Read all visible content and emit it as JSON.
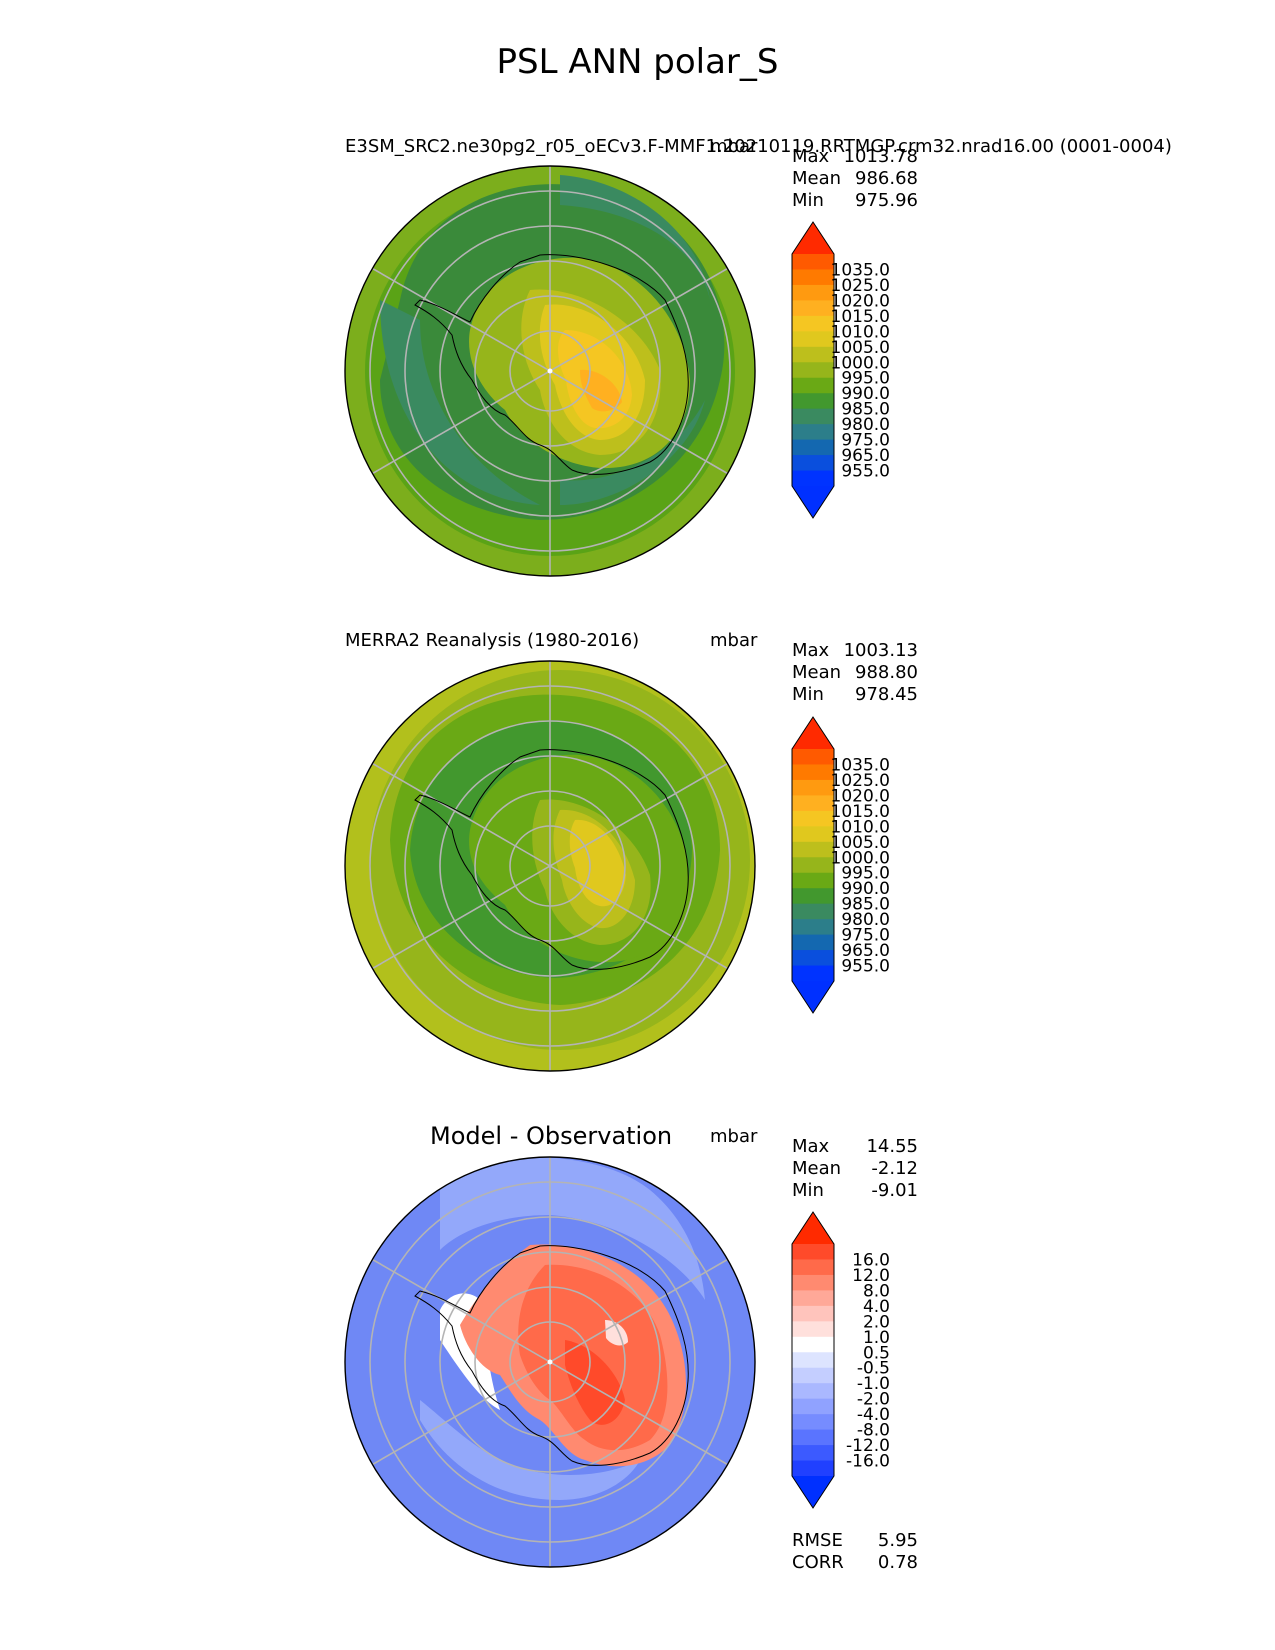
{
  "figure": {
    "title": "PSL ANN polar_S"
  },
  "chart_data": [
    {
      "type": "heatmap",
      "projection": "south-polar-stereographic",
      "panel": "test",
      "title_left": "E3SM_SRC2.ne30pg2_r05_oECv3.F-MMF1.20210119.RRTMGP.crm32.nrad16.00 (0001-0004)",
      "title_right": "mbar",
      "stats": [
        {
          "label": "Max",
          "value": "1013.78"
        },
        {
          "label": "Mean",
          "value": "986.68"
        },
        {
          "label": "Min",
          "value": "975.96"
        }
      ],
      "colorbar": {
        "extend": "both",
        "colors": [
          "#ff2a00",
          "#ff5a00",
          "#ff7a00",
          "#ff9a10",
          "#ffb020",
          "#f5c622",
          "#e0c81e",
          "#bdbf1c",
          "#96b51b",
          "#6aa915",
          "#42982e",
          "#3a8a60",
          "#2c7e8a",
          "#1468b0",
          "#0a4fdd",
          "#0033ff",
          "#0030ff"
        ],
        "ticks": [
          "1035.0",
          "1025.0",
          "1020.0",
          "1015.0",
          "1010.0",
          "1005.0",
          "1000.0",
          "995.0",
          "990.0",
          "985.0",
          "980.0",
          "975.0",
          "965.0",
          "955.0"
        ]
      }
    },
    {
      "type": "heatmap",
      "projection": "south-polar-stereographic",
      "panel": "reference",
      "title_left": "MERRA2 Reanalysis (1980-2016)",
      "title_right": "mbar",
      "stats": [
        {
          "label": "Max",
          "value": "1003.13"
        },
        {
          "label": "Mean",
          "value": "988.80"
        },
        {
          "label": "Min",
          "value": "978.45"
        }
      ],
      "colorbar": {
        "extend": "both",
        "colors": [
          "#ff2a00",
          "#ff5a00",
          "#ff7a00",
          "#ff9a10",
          "#ffb020",
          "#f5c622",
          "#e0c81e",
          "#bdbf1c",
          "#96b51b",
          "#6aa915",
          "#42982e",
          "#3a8a60",
          "#2c7e8a",
          "#1468b0",
          "#0a4fdd",
          "#0033ff",
          "#0030ff"
        ],
        "ticks": [
          "1035.0",
          "1025.0",
          "1020.0",
          "1015.0",
          "1010.0",
          "1005.0",
          "1000.0",
          "995.0",
          "990.0",
          "985.0",
          "980.0",
          "975.0",
          "965.0",
          "955.0"
        ]
      }
    },
    {
      "type": "heatmap",
      "projection": "south-polar-stereographic",
      "panel": "difference",
      "title_center": "Model - Observation",
      "title_right": "mbar",
      "stats": [
        {
          "label": "Max",
          "value": "14.55"
        },
        {
          "label": "Mean",
          "value": "-2.12"
        },
        {
          "label": "Min",
          "value": "-9.01"
        }
      ],
      "metrics": [
        {
          "label": "RMSE",
          "value": "5.95"
        },
        {
          "label": "CORR",
          "value": "0.78"
        }
      ],
      "colorbar": {
        "extend": "both",
        "colors": [
          "#ff2a00",
          "#ff4a2a",
          "#ff6a4a",
          "#ff8a70",
          "#ffa898",
          "#ffc4bc",
          "#ffe0dc",
          "#ffffff",
          "#dde4ff",
          "#c4ceff",
          "#aab8ff",
          "#90a2ff",
          "#768cff",
          "#5a74ff",
          "#3c5aff",
          "#2040ff",
          "#0030ff"
        ],
        "ticks": [
          "16.0",
          "12.0",
          "8.0",
          "4.0",
          "2.0",
          "1.0",
          "0.5",
          "-0.5",
          "-1.0",
          "-2.0",
          "-4.0",
          "-8.0",
          "-12.0",
          "-16.0"
        ]
      }
    }
  ]
}
